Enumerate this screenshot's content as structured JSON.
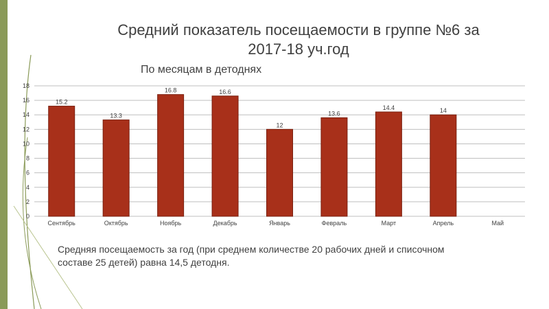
{
  "slide": {
    "title_line1": "Средний показатель посещаемости в группе №6 за",
    "title_line2": "2017-18 уч.год",
    "footnote_line1": "Средняя посещаемость за год (при среднем количестве 20 рабочих дней и списочном",
    "footnote_line2": "составе 25 детей) равна 14,5 детодня."
  },
  "chart_data": {
    "type": "bar",
    "title": "По месяцам  в детоднях",
    "xlabel": "",
    "ylabel": "",
    "categories": [
      "Сентябрь",
      "Октябрь",
      "Ноябрь",
      "Декабрь",
      "Январь",
      "Февраль",
      "Март",
      "Апрель",
      "Май"
    ],
    "values": [
      15.2,
      13.3,
      16.8,
      16.6,
      12,
      13.6,
      14.4,
      14,
      null
    ],
    "data_labels": [
      "15.2",
      "13.3",
      "16.8",
      "16.6",
      "12",
      "13.6",
      "14.4",
      "14",
      ""
    ],
    "ylim": [
      0,
      18
    ],
    "yticks": [
      0,
      2,
      4,
      6,
      8,
      10,
      12,
      14,
      16,
      18
    ],
    "grid": true,
    "legend": "none",
    "colors": {
      "bar": "#a8301a",
      "bar_edge": "#7a2010",
      "grid": "#bfbfbf",
      "axis_text": "#404040"
    }
  }
}
